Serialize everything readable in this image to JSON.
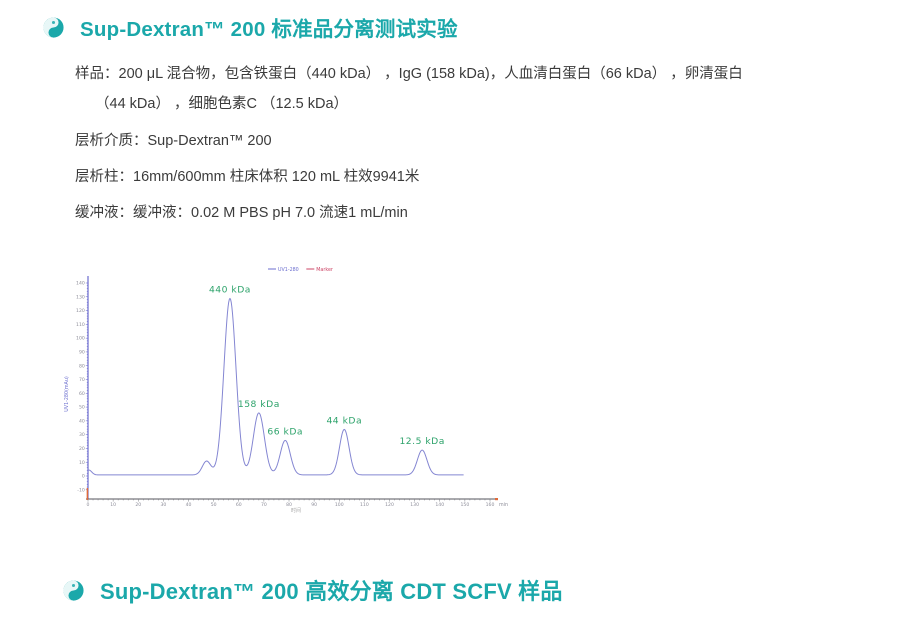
{
  "brand": {
    "accent_color": "#1ba8aa"
  },
  "section1": {
    "title": "Sup-Dextran™ 200 标准品分离测试实验"
  },
  "section2": {
    "title": "Sup-Dextran™ 200 高效分离 CDT SCFV 样品"
  },
  "details": {
    "lines": [
      {
        "text": "样品：200 μL 混合物，包含铁蛋白（440 kDa） ，IgG (158 kDa)，人血清白蛋白（66 kDa） ，卵清蛋白"
      },
      {
        "text": "（44 kDa） ，细胞色素C （12.5 kDa）"
      },
      {
        "text": "层析介质：Sup-Dextran™ 200"
      },
      {
        "text": "层析柱：16mm/600mm 柱床体积 120 mL  柱效9941米"
      },
      {
        "text": "缓冲液：缓冲液：0.02 M PBS pH 7.0  流速1 mL/min"
      }
    ]
  },
  "chart_data": {
    "type": "line",
    "title": "",
    "xlabel": "时间",
    "x_unit": "min",
    "ylabel": "UV1-280(mAu)",
    "xlim": [
      0,
      160
    ],
    "ylim": [
      -10,
      140
    ],
    "x_major_tick": 10,
    "x_minor_tick": 2,
    "y_major_tick": 10,
    "y_minor_tick": 2,
    "x_data_end": 149.5,
    "baseline_mau": 0.8,
    "grid": false,
    "legend_position": "top-center",
    "legend": [
      {
        "name": "UV1-280",
        "color": "#6b6ecf"
      },
      {
        "name": "Marker",
        "color": "#cc4466"
      }
    ],
    "series_color": "#8486d2",
    "axis_y_color": "#5d5dc9",
    "axis_x_color": "#55565e",
    "tick_label_color": "#8d8d99",
    "marker_accent_color": "#e06a3a",
    "peak_label_color": "#2ea36b",
    "peaks": [
      {
        "label": "",
        "center_min": 0.4,
        "height_mau": 3.5,
        "sigma_min": 1.1
      },
      {
        "label": "",
        "center_min": 47.2,
        "height_mau": 10,
        "sigma_min": 1.7
      },
      {
        "label": "440 kDa",
        "center_min": 56.5,
        "height_mau": 128,
        "sigma_min": 2.4
      },
      {
        "label": "158 kDa",
        "center_min": 68,
        "height_mau": 45,
        "sigma_min": 2.2
      },
      {
        "label": "66 kDa",
        "center_min": 78.5,
        "height_mau": 25,
        "sigma_min": 2.0
      },
      {
        "label": "44 kDa",
        "center_min": 102,
        "height_mau": 33,
        "sigma_min": 1.9
      },
      {
        "label": "12.5 kDa",
        "center_min": 133,
        "height_mau": 18,
        "sigma_min": 1.9
      }
    ]
  }
}
